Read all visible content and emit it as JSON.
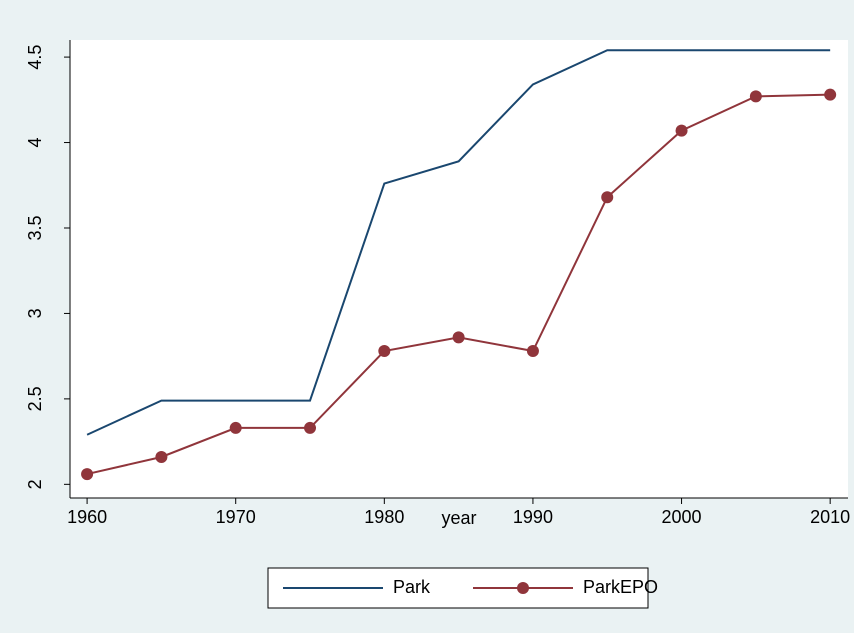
{
  "chart_data": {
    "type": "line",
    "x_label": "year",
    "x": [
      1960,
      1965,
      1970,
      1975,
      1980,
      1985,
      1990,
      1995,
      2000,
      2005,
      2010
    ],
    "series": [
      {
        "name": "Park",
        "color": "#1a476f",
        "marker": "none",
        "values": [
          2.29,
          2.49,
          2.49,
          2.49,
          3.76,
          3.89,
          4.34,
          4.54,
          4.54,
          4.54,
          4.54
        ]
      },
      {
        "name": "ParkEPO",
        "color": "#90353b",
        "marker": "circle",
        "values": [
          2.06,
          2.16,
          2.33,
          2.33,
          2.78,
          2.86,
          2.78,
          3.68,
          4.07,
          4.27,
          4.28
        ]
      }
    ],
    "xlim": [
      1958.85,
      2011.2
    ],
    "xticks": [
      1960,
      1970,
      1980,
      1990,
      2000,
      2010
    ],
    "ylim": [
      1.92,
      4.6
    ],
    "yticks": [
      2,
      2.5,
      3,
      3.5,
      4,
      4.5
    ],
    "grid": false,
    "legend": "bottom"
  }
}
